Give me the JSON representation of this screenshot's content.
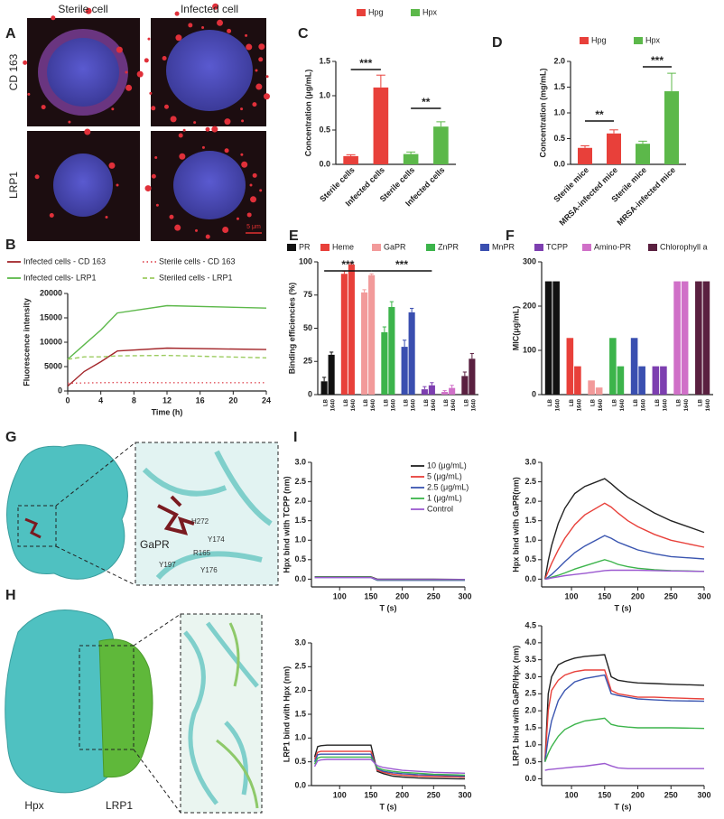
{
  "images": {
    "A": {
      "letter": "A",
      "columns": [
        "Sterile cell",
        "Infected cell"
      ],
      "rows": [
        "CD 163",
        "LRP1"
      ],
      "scale_bar": "5 μm"
    },
    "G": {
      "letter": "G",
      "ligand": "GaPR",
      "residues": [
        "H272",
        "Y174",
        "R165",
        "Y197",
        "Y176"
      ]
    },
    "H": {
      "letter": "H",
      "proteins": [
        "Hpx",
        "LRP1"
      ]
    }
  },
  "chart_data": [
    {
      "type": "line",
      "panel": "B",
      "x": [
        0,
        2,
        4,
        6,
        12,
        24
      ],
      "xlim": [
        0,
        24
      ],
      "xticks": [
        0,
        4,
        8,
        12,
        16,
        20,
        24
      ],
      "ylim": [
        0,
        20000
      ],
      "yticks": [
        0,
        5000,
        10000,
        15000,
        20000
      ],
      "xlabel": "Time (h)",
      "ylabel": "Fluorescence intensity",
      "series": [
        {
          "name": "Infected cells - CD 163",
          "color": "#a3262a",
          "style": "solid",
          "values": [
            1000,
            4000,
            6000,
            8200,
            8800,
            8500
          ]
        },
        {
          "name": "Sterile cells - CD 163",
          "color": "#e0505a",
          "style": "dotted",
          "values": [
            1600,
            1650,
            1700,
            1750,
            1700,
            1700
          ]
        },
        {
          "name": "Infected cells- LRP1",
          "color": "#5cb84a",
          "style": "solid",
          "values": [
            6500,
            9500,
            12500,
            16000,
            17500,
            17000
          ]
        },
        {
          "name": "Steriled cells - LRP1",
          "color": "#9ccc60",
          "style": "dashed",
          "values": [
            6500,
            7000,
            7000,
            7200,
            7300,
            6800
          ]
        }
      ]
    },
    {
      "type": "bar",
      "panel": "C",
      "categories": [
        "Sterile cells",
        "Infected cells",
        "Sterile cells",
        "Infected cells"
      ],
      "ylim": [
        0,
        1.5
      ],
      "yticks": [
        {
          "value": 0,
          "label": "0.0"
        },
        0.5,
        {
          "value": 1,
          "label": "1.0"
        },
        1.5
      ],
      "ylabel": "Concentration (μg/mL)",
      "series": [
        {
          "name": "Hpg",
          "color": "#e8403a",
          "values": [
            0.12,
            1.12,
            null,
            null
          ],
          "errors": [
            0.02,
            0.18,
            null,
            null
          ]
        },
        {
          "name": "Hpx",
          "color": "#5cb84a",
          "values": [
            null,
            null,
            0.15,
            0.55
          ],
          "errors": [
            null,
            null,
            0.03,
            0.07
          ]
        }
      ],
      "annotations": [
        "***",
        "**"
      ]
    },
    {
      "type": "bar",
      "panel": "D",
      "categories": [
        "Sterile mice",
        "MRSA-infected mice",
        "Sterile mice",
        "MRSA-infected mice"
      ],
      "ylim": [
        0,
        2
      ],
      "yticks": [
        {
          "value": 0,
          "label": "0.0"
        },
        0.5,
        {
          "value": 1,
          "label": "1.0"
        },
        1.5,
        {
          "value": 2,
          "label": "2.0"
        }
      ],
      "ylabel": "Concentration (mg/mL)",
      "series": [
        {
          "name": "Hpg",
          "color": "#e8403a",
          "values": [
            0.32,
            0.6,
            null,
            null
          ],
          "errors": [
            0.04,
            0.07,
            null,
            null
          ]
        },
        {
          "name": "Hpx",
          "color": "#5cb84a",
          "values": [
            null,
            null,
            0.4,
            1.42
          ],
          "errors": [
            null,
            null,
            0.05,
            0.35
          ]
        }
      ],
      "annotations": [
        "**",
        "***"
      ]
    },
    {
      "type": "bar",
      "panel": "E",
      "categories": [
        "LB",
        "1640"
      ],
      "ylim": [
        0,
        100
      ],
      "yticks": [
        0,
        25,
        50,
        75,
        100
      ],
      "ylabel": "Binding efficiencies (%)",
      "series": [
        {
          "name": "PR",
          "color": "#111111",
          "values": [
            10,
            30
          ],
          "errors": [
            3,
            2
          ]
        },
        {
          "name": "Heme",
          "color": "#e8403a",
          "values": [
            91,
            98
          ],
          "errors": [
            2,
            1
          ]
        },
        {
          "name": "GaPR",
          "color": "#f29a9a",
          "values": [
            77,
            90
          ],
          "errors": [
            2,
            1
          ]
        },
        {
          "name": "ZnPR",
          "color": "#3cb44b",
          "values": [
            47,
            66
          ],
          "errors": [
            4,
            4
          ]
        },
        {
          "name": "MnPR",
          "color": "#3a4fb0",
          "values": [
            36,
            62
          ],
          "errors": [
            5,
            3
          ]
        },
        {
          "name": "TCPP",
          "color": "#7d3fb0",
          "values": [
            4,
            7
          ],
          "errors": [
            2,
            2
          ]
        },
        {
          "name": "Amino-PR",
          "color": "#d070c8",
          "values": [
            2,
            5
          ],
          "errors": [
            1,
            2
          ]
        },
        {
          "name": "Chlorophyll a",
          "color": "#5a2040",
          "values": [
            14,
            27
          ],
          "errors": [
            3,
            4
          ]
        }
      ],
      "annotations": [
        "***",
        "***"
      ]
    },
    {
      "type": "bar",
      "panel": "F",
      "categories": [
        "LB",
        "1640"
      ],
      "ylim": [
        0,
        300
      ],
      "yticks": [
        0,
        100,
        200,
        300
      ],
      "ylabel": "MIC(μg/mL)",
      "series": [
        {
          "color": "#111111",
          "values": [
            256,
            256
          ]
        },
        {
          "color": "#e8403a",
          "values": [
            128,
            64
          ]
        },
        {
          "color": "#f29a9a",
          "values": [
            32,
            16
          ]
        },
        {
          "color": "#3cb44b",
          "values": [
            128,
            64
          ]
        },
        {
          "color": "#3a4fb0",
          "values": [
            128,
            64
          ]
        },
        {
          "color": "#7d3fb0",
          "values": [
            64,
            64
          ]
        },
        {
          "color": "#d070c8",
          "values": [
            256,
            256
          ]
        },
        {
          "color": "#5a2040",
          "values": [
            256,
            256
          ]
        }
      ]
    },
    {
      "type": "line",
      "panel": "I",
      "x": [
        60,
        65,
        70,
        80,
        90,
        105,
        120,
        150,
        160,
        170,
        185,
        200,
        225,
        250,
        300
      ],
      "xlim": [
        55,
        300
      ],
      "xticks": [
        100,
        150,
        200,
        250,
        300
      ],
      "ylim": [
        -0.2,
        3
      ],
      "yticks": [
        {
          "value": 0,
          "label": "0.0"
        },
        0.5,
        {
          "value": 1,
          "label": "1.0"
        },
        1.5,
        {
          "value": 2,
          "label": "2.0"
        },
        2.5,
        {
          "value": 3,
          "label": "3.0"
        }
      ],
      "xlabel": "T (s)",
      "ylabel": "Hpx bind with TCPP (nm)",
      "series": [
        {
          "name": "10 (μg/mL)",
          "color": "#222222",
          "style": "solid",
          "values": [
            0.06,
            0.06,
            0.06,
            0.06,
            0.06,
            0.06,
            0.06,
            0.06,
            0,
            0,
            0,
            0,
            0,
            0,
            -0.01
          ]
        },
        {
          "name": "5 (μg/mL)",
          "color": "#e8403a",
          "style": "solid",
          "values": [
            0.05,
            0.05,
            0.05,
            0.05,
            0.05,
            0.05,
            0.05,
            0.05,
            -0.02,
            -0.02,
            -0.02,
            -0.02,
            -0.02,
            -0.02,
            -0.02
          ]
        },
        {
          "name": "2.5 (μg/mL)",
          "color": "#3a55b0",
          "style": "solid",
          "values": [
            0.04,
            0.04,
            0.04,
            0.04,
            0.04,
            0.04,
            0.04,
            0.04,
            -0.03,
            -0.03,
            -0.03,
            -0.03,
            -0.03,
            -0.03,
            -0.03
          ]
        },
        {
          "name": "1 (μg/mL)",
          "color": "#3cb44b",
          "style": "solid",
          "values": [
            0.05,
            0.05,
            0.05,
            0.05,
            0.05,
            0.05,
            0.05,
            0.05,
            -0.02,
            -0.02,
            -0.02,
            -0.02,
            -0.02,
            -0.02,
            -0.02
          ]
        },
        {
          "name": "Control",
          "color": "#9b59d0",
          "style": "solid",
          "values": [
            0.04,
            0.04,
            0.04,
            0.04,
            0.04,
            0.04,
            0.04,
            0.04,
            -0.01,
            -0.01,
            -0.01,
            -0.01,
            -0.01,
            -0.01,
            -0.01
          ]
        }
      ]
    },
    {
      "type": "line",
      "x": [
        60,
        65,
        70,
        80,
        90,
        105,
        120,
        150,
        160,
        170,
        185,
        200,
        225,
        250,
        300
      ],
      "xlim": [
        55,
        300
      ],
      "xticks": [
        100,
        150,
        200,
        250,
        300
      ],
      "ylim": [
        -0.2,
        3
      ],
      "yticks": [
        {
          "value": 0,
          "label": "0.0"
        },
        0.5,
        {
          "value": 1,
          "label": "1.0"
        },
        1.5,
        {
          "value": 2,
          "label": "2.0"
        },
        2.5,
        {
          "value": 3,
          "label": "3.0"
        }
      ],
      "xlabel": "T (s)",
      "ylabel": "Hpx bind with GaPR(nm)",
      "series": [
        {
          "color": "#222222",
          "style": "solid",
          "values": [
            0,
            0.47,
            0.86,
            1.43,
            1.82,
            2.2,
            2.38,
            2.58,
            2.45,
            2.3,
            2.1,
            1.95,
            1.7,
            1.5,
            1.2
          ]
        },
        {
          "color": "#e8403a",
          "style": "solid",
          "values": [
            0,
            0.2,
            0.4,
            0.75,
            1.05,
            1.4,
            1.65,
            1.95,
            1.85,
            1.7,
            1.5,
            1.35,
            1.15,
            1,
            0.82
          ]
        },
        {
          "color": "#3a55b0",
          "style": "solid",
          "values": [
            0,
            0.05,
            0.12,
            0.28,
            0.45,
            0.68,
            0.85,
            1.12,
            1.05,
            0.95,
            0.85,
            0.75,
            0.65,
            0.58,
            0.52
          ]
        },
        {
          "color": "#3cb44b",
          "style": "solid",
          "values": [
            0,
            0.02,
            0.05,
            0.1,
            0.16,
            0.26,
            0.34,
            0.5,
            0.45,
            0.38,
            0.32,
            0.28,
            0.24,
            0.22,
            0.2
          ]
        },
        {
          "color": "#9b59d0",
          "style": "solid",
          "values": [
            0,
            0.01,
            0.03,
            0.06,
            0.09,
            0.12,
            0.15,
            0.22,
            0.23,
            0.23,
            0.23,
            0.23,
            0.22,
            0.21,
            0.2
          ]
        }
      ]
    },
    {
      "type": "line",
      "x": [
        60,
        65,
        70,
        80,
        90,
        105,
        120,
        150,
        160,
        170,
        185,
        200,
        225,
        250,
        300
      ],
      "xlim": [
        55,
        300
      ],
      "xticks": [
        100,
        150,
        200,
        250,
        300
      ],
      "ylim": [
        0,
        3
      ],
      "yticks": [
        {
          "value": 0,
          "label": "0.0"
        },
        0.5,
        {
          "value": 1,
          "label": "1.0"
        },
        1.5,
        {
          "value": 2,
          "label": "2.0"
        },
        2.5,
        {
          "value": 3,
          "label": "3.0"
        }
      ],
      "xlabel": "T (s)",
      "ylabel": "LRP1 bind with Hpx (nm)",
      "series": [
        {
          "color": "#222222",
          "style": "solid",
          "values": [
            0.6,
            0.82,
            0.84,
            0.85,
            0.85,
            0.85,
            0.85,
            0.85,
            0.3,
            0.25,
            0.2,
            0.18,
            0.16,
            0.15,
            0.14
          ]
        },
        {
          "color": "#e8403a",
          "style": "solid",
          "values": [
            0.55,
            0.7,
            0.72,
            0.72,
            0.72,
            0.72,
            0.72,
            0.72,
            0.32,
            0.28,
            0.24,
            0.22,
            0.2,
            0.19,
            0.18
          ]
        },
        {
          "color": "#3a55b0",
          "style": "solid",
          "values": [
            0.5,
            0.65,
            0.66,
            0.66,
            0.66,
            0.66,
            0.66,
            0.66,
            0.35,
            0.3,
            0.27,
            0.25,
            0.23,
            0.22,
            0.2
          ]
        },
        {
          "color": "#3cb44b",
          "style": "solid",
          "values": [
            0.45,
            0.58,
            0.6,
            0.6,
            0.6,
            0.6,
            0.6,
            0.6,
            0.38,
            0.33,
            0.3,
            0.28,
            0.26,
            0.24,
            0.22
          ]
        },
        {
          "color": "#9b59d0",
          "style": "solid",
          "values": [
            0.4,
            0.52,
            0.54,
            0.55,
            0.55,
            0.55,
            0.55,
            0.55,
            0.42,
            0.38,
            0.35,
            0.32,
            0.3,
            0.28,
            0.26
          ]
        }
      ]
    },
    {
      "type": "line",
      "x": [
        60,
        65,
        70,
        80,
        90,
        105,
        120,
        150,
        160,
        170,
        185,
        200,
        225,
        250,
        300
      ],
      "xlim": [
        55,
        300
      ],
      "xticks": [
        100,
        150,
        200,
        250,
        300
      ],
      "ylim": [
        -0.2,
        4.5
      ],
      "yticks": [
        {
          "value": 0,
          "label": "0.0"
        },
        0.5,
        {
          "value": 1,
          "label": "1.0"
        },
        1.5,
        {
          "value": 2,
          "label": "2.0"
        },
        2.5,
        {
          "value": 3,
          "label": "3.0"
        },
        3.5,
        {
          "value": 4,
          "label": "4.0"
        },
        4.5
      ],
      "xlabel": "T (s)",
      "ylabel": "LRP1 bind with GaPR/Hpx (nm)",
      "series": [
        {
          "color": "#222222",
          "style": "solid",
          "values": [
            0.5,
            2.5,
            3,
            3.35,
            3.45,
            3.55,
            3.6,
            3.65,
            3,
            2.9,
            2.85,
            2.82,
            2.8,
            2.78,
            2.75
          ]
        },
        {
          "color": "#e8403a",
          "style": "solid",
          "values": [
            0.5,
            2,
            2.6,
            2.9,
            3.05,
            3.15,
            3.2,
            3.2,
            2.6,
            2.5,
            2.45,
            2.4,
            2.4,
            2.38,
            2.35
          ]
        },
        {
          "color": "#3a55b0",
          "style": "solid",
          "values": [
            0.5,
            1.2,
            1.7,
            2.3,
            2.6,
            2.85,
            2.95,
            3.05,
            2.5,
            2.45,
            2.4,
            2.35,
            2.32,
            2.3,
            2.28
          ]
        },
        {
          "color": "#3cb44b",
          "style": "solid",
          "values": [
            0.5,
            0.75,
            0.95,
            1.25,
            1.45,
            1.6,
            1.7,
            1.78,
            1.6,
            1.55,
            1.52,
            1.5,
            1.5,
            1.5,
            1.48
          ]
        },
        {
          "color": "#9b59d0",
          "style": "solid",
          "values": [
            0.25,
            0.27,
            0.28,
            0.3,
            0.32,
            0.35,
            0.37,
            0.45,
            0.38,
            0.32,
            0.3,
            0.3,
            0.3,
            0.3,
            0.3
          ]
        }
      ]
    }
  ]
}
